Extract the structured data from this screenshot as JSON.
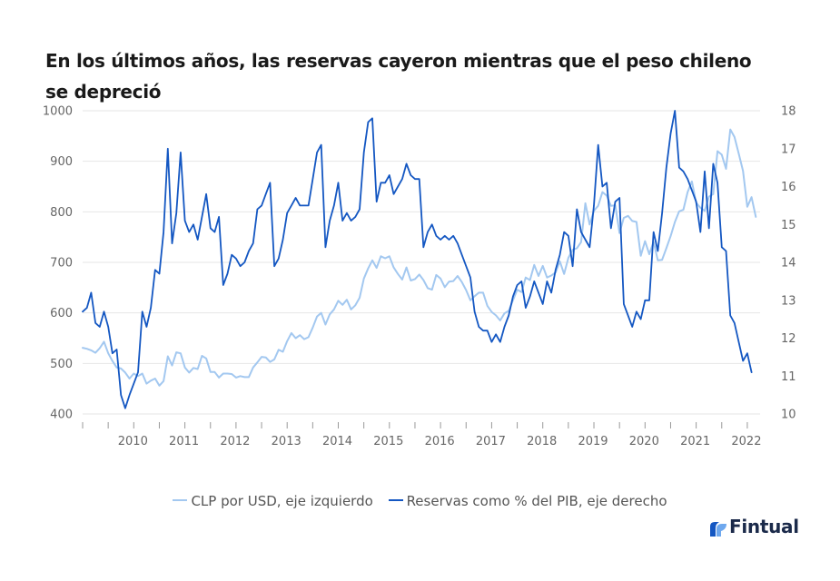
{
  "title": "En los últimos años, las reservas cayeron mientras que el peso chileno se depreció",
  "brand": "Fintual",
  "colors": {
    "clp": "#a3c8f0",
    "reserves": "#1457c2",
    "grid": "#e6e6e6",
    "axis": "#999999"
  },
  "chart_data": {
    "type": "line",
    "title": "En los últimos años, las reservas cayeron mientras que el peso chileno se depreció",
    "x_tick_labels": [
      "2010",
      "2011",
      "2012",
      "2013",
      "2014",
      "2015",
      "2016",
      "2017",
      "2018",
      "2019",
      "2020",
      "2021",
      "2022"
    ],
    "x_start_year": 2009.5,
    "x_range": [
      2009.5,
      2022.75
    ],
    "y_left": {
      "label": "CLP por USD",
      "range": [
        400,
        1000
      ],
      "ticks": [
        400,
        500,
        600,
        700,
        800,
        900,
        1000
      ]
    },
    "y_right": {
      "label": "Reservas como % del PIB",
      "range": [
        10,
        18
      ],
      "ticks": [
        10,
        11,
        12,
        13,
        14,
        15,
        16,
        17,
        18
      ]
    },
    "series": [
      {
        "name": "CLP por USD, eje izquierdo",
        "axis": "left",
        "color": "#a3c8f0",
        "points_per_year": 12,
        "values": [
          531,
          529,
          526,
          521,
          530,
          543,
          520,
          505,
          492,
          490,
          482,
          470,
          480,
          475,
          480,
          460,
          466,
          470,
          456,
          465,
          514,
          496,
          522,
          520,
          492,
          482,
          491,
          489,
          515,
          510,
          483,
          483,
          472,
          480,
          480,
          479,
          472,
          475,
          473,
          473,
          492,
          502,
          513,
          512,
          503,
          508,
          527,
          523,
          544,
          560,
          550,
          556,
          548,
          552,
          571,
          593,
          600,
          577,
          597,
          607,
          624,
          616,
          626,
          607,
          615,
          630,
          668,
          688,
          704,
          689,
          712,
          708,
          712,
          690,
          677,
          666,
          690,
          664,
          667,
          676,
          665,
          649,
          646,
          675,
          668,
          651,
          662,
          663,
          673,
          661,
          645,
          625,
          633,
          640,
          640,
          614,
          602,
          595,
          585,
          599,
          604,
          625,
          646,
          641,
          670,
          665,
          695,
          673,
          693,
          670,
          674,
          680,
          702,
          677,
          709,
          725,
          728,
          740,
          817,
          775,
          802,
          812,
          839,
          832,
          812,
          813,
          758,
          788,
          792,
          782,
          780,
          713,
          742,
          716,
          741,
          704,
          705,
          728,
          752,
          780,
          801,
          804,
          839,
          860,
          818,
          808,
          802,
          830,
          835,
          920,
          913,
          885,
          963,
          948,
          915,
          881,
          810,
          829,
          790
        ]
      },
      {
        "name": "Reservas como % del PIB, eje derecho",
        "axis": "right",
        "color": "#1457c2",
        "points_per_year": 12,
        "values": [
          12.7,
          12.8,
          13.2,
          12.4,
          12.3,
          12.7,
          12.3,
          11.6,
          11.7,
          10.5,
          10.15,
          10.5,
          10.8,
          11.1,
          12.7,
          12.3,
          12.8,
          13.8,
          13.7,
          14.8,
          17.0,
          14.5,
          15.3,
          16.9,
          15.1,
          14.8,
          15.0,
          14.6,
          15.2,
          15.8,
          14.9,
          14.8,
          15.2,
          13.4,
          13.7,
          14.2,
          14.1,
          13.9,
          14.0,
          14.3,
          14.5,
          15.4,
          15.5,
          15.8,
          16.1,
          13.9,
          14.1,
          14.6,
          15.3,
          15.5,
          15.7,
          15.5,
          15.5,
          15.5,
          16.2,
          16.9,
          17.1,
          14.4,
          15.1,
          15.5,
          16.1,
          15.1,
          15.3,
          15.1,
          15.2,
          15.4,
          16.9,
          17.7,
          17.8,
          15.6,
          16.1,
          16.1,
          16.3,
          15.8,
          16.0,
          16.2,
          16.6,
          16.3,
          16.2,
          16.2,
          14.4,
          14.8,
          15.0,
          14.7,
          14.6,
          14.7,
          14.6,
          14.7,
          14.5,
          14.2,
          13.9,
          13.6,
          12.7,
          12.3,
          12.2,
          12.2,
          11.9,
          12.1,
          11.9,
          12.3,
          12.6,
          13.1,
          13.4,
          13.5,
          12.8,
          13.1,
          13.5,
          13.2,
          12.9,
          13.5,
          13.2,
          13.8,
          14.2,
          14.8,
          14.7,
          13.9,
          15.4,
          14.8,
          14.6,
          14.4,
          15.5,
          17.1,
          16.0,
          16.1,
          14.9,
          15.6,
          15.7,
          12.9,
          12.6,
          12.3,
          12.7,
          12.5,
          13.0,
          13.0,
          14.8,
          14.3,
          15.3,
          16.5,
          17.4,
          18.0,
          16.5,
          16.4,
          16.2,
          15.9,
          15.6,
          14.8,
          16.4,
          14.9,
          16.6,
          16.1,
          14.4,
          14.3,
          12.6,
          12.4,
          11.9,
          11.4,
          11.6,
          11.1
        ]
      }
    ]
  }
}
